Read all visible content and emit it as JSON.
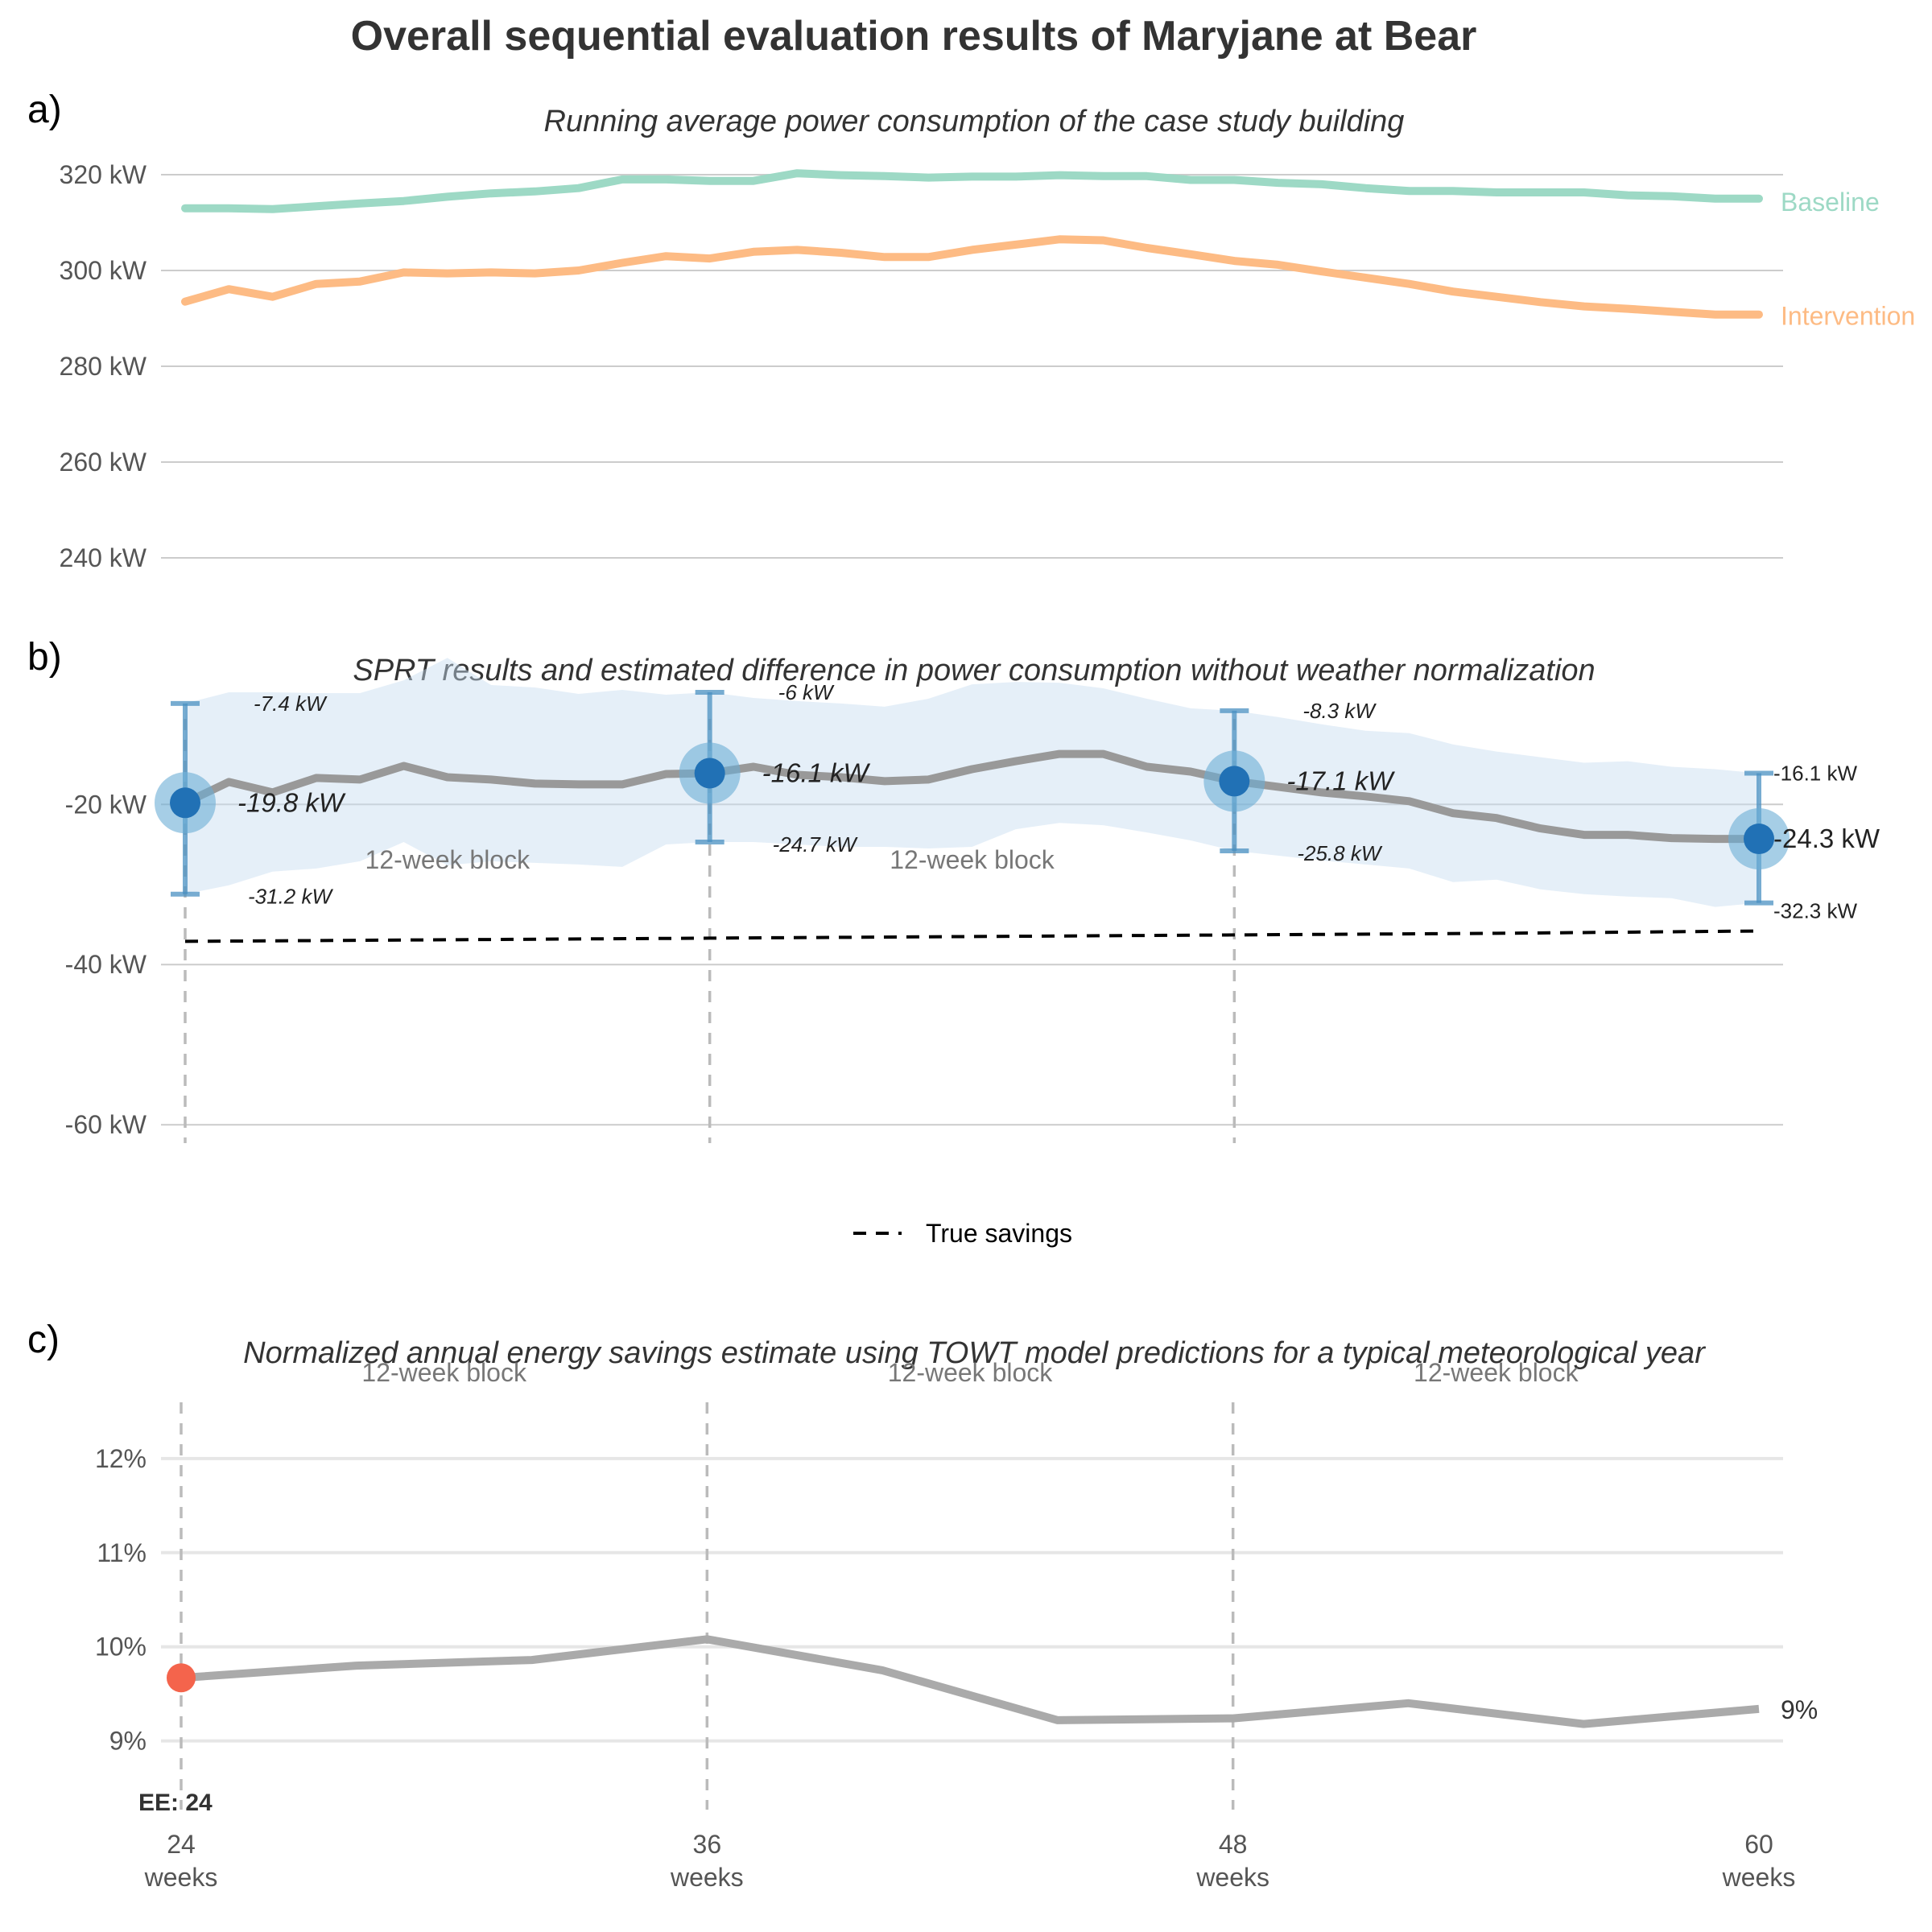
{
  "figure": {
    "title": "Overall sequential evaluation results of Maryjane at Bear"
  },
  "colors": {
    "baseline": "#9dd9c5",
    "intervention": "#fdbb84",
    "difference_line": "#999999",
    "ci_band": "#c6dbef",
    "sprt_point": "#2171b5",
    "sprt_halo": "#6baed6",
    "error_bar": "#4a90c2",
    "true_savings": "#000000",
    "savings_line": "#aaaaaa",
    "ee_point": "#f4644c"
  },
  "x_axis": {
    "ticks": [
      {
        "value": 24,
        "label_top": "24",
        "label_bottom": "weeks"
      },
      {
        "value": 36,
        "label_top": "36",
        "label_bottom": "weeks"
      },
      {
        "value": 48,
        "label_top": "48",
        "label_bottom": "weeks"
      },
      {
        "value": 60,
        "label_top": "60",
        "label_bottom": "weeks"
      }
    ],
    "range": [
      24,
      60
    ]
  },
  "chart_data": [
    {
      "panel": "a)",
      "type": "line",
      "subtitle": "Running average power consumption of the case study building",
      "ylim": [
        240,
        320
      ],
      "yticks": [
        240,
        260,
        280,
        300,
        320
      ],
      "ytick_labels": [
        "240 kW",
        "260 kW",
        "280 kW",
        "300 kW",
        "320 kW"
      ],
      "grid": true,
      "x": [
        24,
        25,
        26,
        27,
        28,
        29,
        30,
        31,
        32,
        33,
        34,
        35,
        36,
        37,
        38,
        39,
        40,
        41,
        42,
        43,
        44,
        45,
        46,
        47,
        48,
        49,
        50,
        51,
        52,
        53,
        54,
        55,
        56,
        57,
        58,
        59,
        60
      ],
      "series": [
        {
          "name": "Baseline",
          "values": [
            313,
            313,
            312.8,
            313.4,
            314,
            314.5,
            315.4,
            316.1,
            316.5,
            317.2,
            319,
            319,
            318.7,
            318.7,
            320.3,
            319.9,
            319.7,
            319.4,
            319.6,
            319.6,
            319.9,
            319.7,
            319.7,
            318.9,
            318.9,
            318.3,
            318,
            317.2,
            316.6,
            316.6,
            316.3,
            316.3,
            316.3,
            315.7,
            315.5,
            315,
            315
          ]
        },
        {
          "name": "Intervention",
          "values": [
            293.5,
            296.1,
            294.5,
            297.2,
            297.7,
            299.6,
            299.4,
            299.6,
            299.4,
            300,
            301.6,
            303,
            302.5,
            303.9,
            304.3,
            303.7,
            302.8,
            302.8,
            304.3,
            305.4,
            306.5,
            306.3,
            304.7,
            303.4,
            302,
            301.2,
            299.8,
            298.5,
            297.2,
            295.6,
            294.5,
            293.4,
            292.5,
            292,
            291.4,
            290.8,
            290.8
          ]
        }
      ]
    },
    {
      "panel": "b)",
      "type": "line",
      "subtitle": "SPRT results and estimated difference in power consumption without weather normalization",
      "ylim": [
        -64,
        -6
      ],
      "yticks": [
        -60,
        -40,
        -20
      ],
      "ytick_labels": [
        "-60 kW",
        "-40 kW",
        "-20 kW"
      ],
      "grid": true,
      "x": [
        24,
        25,
        26,
        27,
        28,
        29,
        30,
        31,
        32,
        33,
        34,
        35,
        36,
        37,
        38,
        39,
        40,
        41,
        42,
        43,
        44,
        45,
        46,
        47,
        48,
        49,
        50,
        51,
        52,
        53,
        54,
        55,
        56,
        57,
        58,
        59,
        60
      ],
      "difference": [
        -19.8,
        -17.2,
        -18.5,
        -16.7,
        -16.9,
        -15.2,
        -16.6,
        -16.9,
        -17.4,
        -17.5,
        -17.5,
        -16.2,
        -16.1,
        -15.3,
        -16.3,
        -16.6,
        -17.1,
        -16.9,
        -15.6,
        -14.6,
        -13.7,
        -13.7,
        -15.3,
        -15.9,
        -17.1,
        -17.8,
        -18.5,
        -19,
        -19.6,
        -21.1,
        -21.7,
        -23,
        -23.8,
        -23.8,
        -24.2,
        -24.3,
        -24.3
      ],
      "ci_upper": [
        -7.4,
        -6,
        -6,
        -6.1,
        -6.1,
        -4.5,
        -1.7,
        -5.1,
        -5.4,
        -6.2,
        -5.7,
        -6.3,
        -6,
        -6.7,
        -7.1,
        -7.4,
        -7.8,
        -6.8,
        -5,
        -4.7,
        -4.8,
        -5.5,
        -6.8,
        -8,
        -8.3,
        -9.1,
        -10,
        -10.8,
        -11.1,
        -12.5,
        -13.4,
        -14.1,
        -14.8,
        -14.6,
        -15.3,
        -15.6,
        -16.1
      ],
      "ci_lower": [
        -31.2,
        -30.1,
        -28.4,
        -28,
        -27.1,
        -24.7,
        -27.6,
        -27.1,
        -27.3,
        -27.5,
        -27.8,
        -25,
        -24.7,
        -24.7,
        -25,
        -25.3,
        -25.3,
        -25.5,
        -25.3,
        -23.1,
        -22.3,
        -22.6,
        -23.5,
        -24.5,
        -25.8,
        -26.4,
        -27,
        -27.5,
        -28,
        -29.7,
        -29.4,
        -30.6,
        -31.2,
        -31.5,
        -31.7,
        -32.8,
        -32.3
      ],
      "true_savings": [
        -37.1,
        -36.9,
        -36.7,
        -36.5,
        -36.3,
        -36.1,
        -35.8
      ],
      "true_savings_x": [
        24,
        30,
        36,
        42,
        48,
        54,
        60
      ],
      "sprt_points": [
        {
          "x": 24,
          "estimate": -19.8,
          "upper": -7.4,
          "lower": -31.2,
          "estimate_label": "-19.8 kW",
          "upper_label": "-7.4 kW",
          "lower_label": "-31.2 kW"
        },
        {
          "x": 36,
          "estimate": -16.1,
          "upper": -6,
          "lower": -24.7,
          "estimate_label": "-16.1 kW",
          "upper_label": "-6 kW",
          "lower_label": "-24.7 kW"
        },
        {
          "x": 48,
          "estimate": -17.1,
          "upper": -8.3,
          "lower": -25.8,
          "estimate_label": "-17.1 kW",
          "upper_label": "-8.3 kW",
          "lower_label": "-25.8 kW"
        },
        {
          "x": 60,
          "estimate": -24.3,
          "upper": -16.1,
          "lower": -32.3,
          "estimate_label": "-24.3 kW",
          "upper_label": "-16.1 kW",
          "lower_label": "-32.3 kW"
        }
      ],
      "block_labels": [
        "12-week block",
        "12-week block"
      ],
      "legend": [
        {
          "name": "True savings",
          "style": "dashed"
        }
      ]
    },
    {
      "panel": "c)",
      "type": "line",
      "subtitle": "Normalized annual energy savings estimate using TOWT model predictions for a typical meteorological year",
      "ylim": [
        8.8,
        12.7
      ],
      "yticks": [
        9,
        10,
        11,
        12
      ],
      "ytick_labels": [
        "9%",
        "10%",
        "11%",
        "12%"
      ],
      "grid": true,
      "x": [
        24,
        28,
        32,
        36,
        40,
        44,
        48,
        52,
        56,
        60
      ],
      "values": [
        9.67,
        9.8,
        9.86,
        10.08,
        9.75,
        9.22,
        9.24,
        9.4,
        9.18,
        9.34
      ],
      "end_label": "9%",
      "ee_point": {
        "x": 24,
        "value": 9.67,
        "label": "EE: 24"
      },
      "block_labels": [
        "12-week block",
        "12-week block",
        "12-week block"
      ]
    }
  ]
}
